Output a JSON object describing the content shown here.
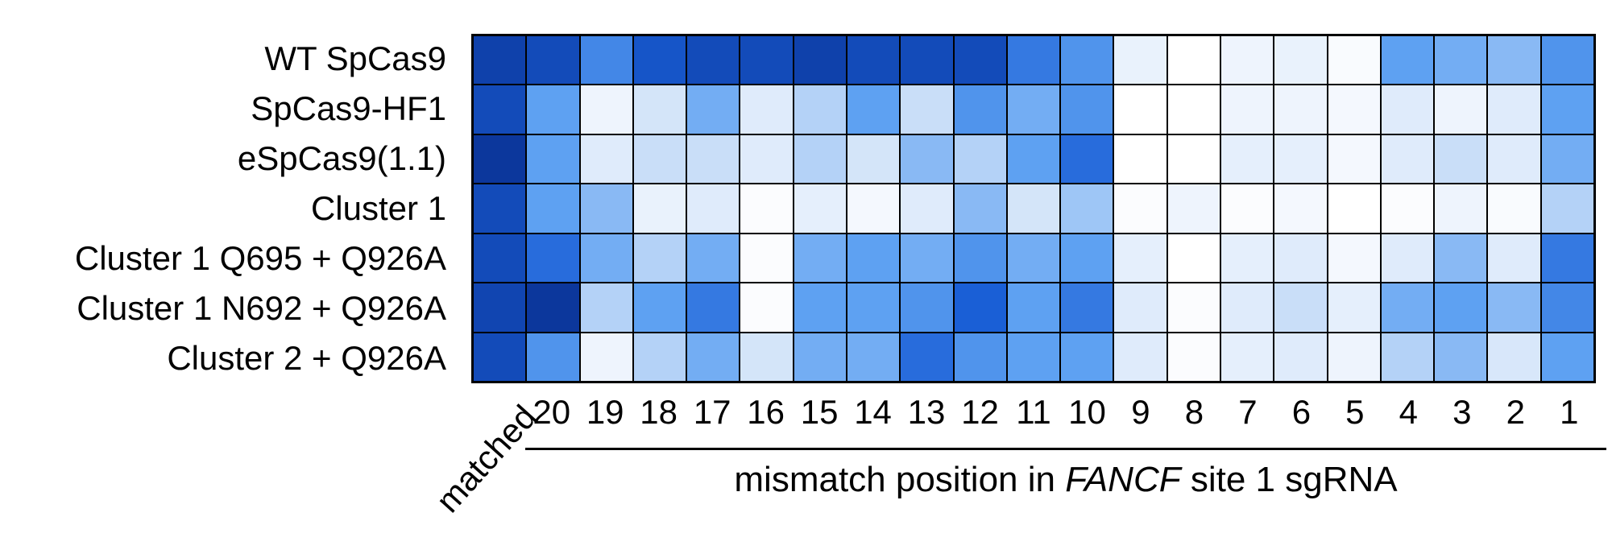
{
  "figure": {
    "background_color": "#ffffff",
    "grid_line_color": "#000000"
  },
  "labels": {
    "matched_column": "matched",
    "axis": {
      "prefix": "mismatch position in ",
      "italic": "FANCF",
      "suffix": " site 1 sgRNA"
    }
  },
  "chart_data": {
    "type": "heatmap",
    "title": "",
    "xlabel": "mismatch position in FANCF site 1 sgRNA",
    "xlabel_parts": {
      "prefix": "mismatch position in ",
      "italic": "FANCF",
      "suffix": " site 1 sgRNA"
    },
    "rows": [
      "WT SpCas9",
      "SpCas9-HF1",
      "eSpCas9(1.1)",
      "Cluster 1",
      "Cluster 1 Q695 + Q926A",
      "Cluster 1 N692 + Q926A",
      "Cluster 2 + Q926A"
    ],
    "columns": [
      "matched",
      "20",
      "19",
      "18",
      "17",
      "16",
      "15",
      "14",
      "13",
      "12",
      "11",
      "10",
      "9",
      "8",
      "7",
      "6",
      "5",
      "4",
      "3",
      "2",
      "1"
    ],
    "value_range": [
      0,
      100
    ],
    "values": [
      [
        90,
        85,
        60,
        80,
        85,
        85,
        90,
        85,
        85,
        85,
        65,
        55,
        10,
        0,
        8,
        10,
        3,
        50,
        45,
        40,
        55
      ],
      [
        85,
        50,
        8,
        20,
        45,
        15,
        30,
        50,
        25,
        55,
        45,
        55,
        0,
        0,
        8,
        8,
        5,
        15,
        8,
        15,
        50
      ],
      [
        95,
        50,
        15,
        25,
        25,
        15,
        30,
        20,
        40,
        30,
        50,
        70,
        0,
        0,
        12,
        12,
        5,
        15,
        25,
        15,
        45
      ],
      [
        85,
        50,
        40,
        10,
        15,
        2,
        12,
        5,
        15,
        40,
        20,
        35,
        2,
        8,
        2,
        5,
        0,
        2,
        8,
        3,
        30
      ],
      [
        85,
        70,
        45,
        30,
        45,
        2,
        45,
        50,
        45,
        55,
        45,
        50,
        12,
        0,
        12,
        15,
        5,
        15,
        40,
        15,
        65
      ],
      [
        88,
        95,
        30,
        50,
        65,
        2,
        50,
        50,
        55,
        75,
        50,
        65,
        15,
        2,
        15,
        25,
        12,
        45,
        50,
        40,
        60
      ],
      [
        85,
        55,
        8,
        30,
        45,
        20,
        45,
        45,
        70,
        55,
        50,
        50,
        15,
        2,
        12,
        15,
        8,
        30,
        40,
        18,
        50
      ]
    ],
    "colormap": {
      "stops": [
        {
          "t": 0.0,
          "color": "#ffffff"
        },
        {
          "t": 0.25,
          "color": "#c9def8"
        },
        {
          "t": 0.5,
          "color": "#5ea1f2"
        },
        {
          "t": 0.75,
          "color": "#1a5fd6"
        },
        {
          "t": 1.0,
          "color": "#082d8e"
        }
      ]
    },
    "legend": "none",
    "grid": true
  }
}
